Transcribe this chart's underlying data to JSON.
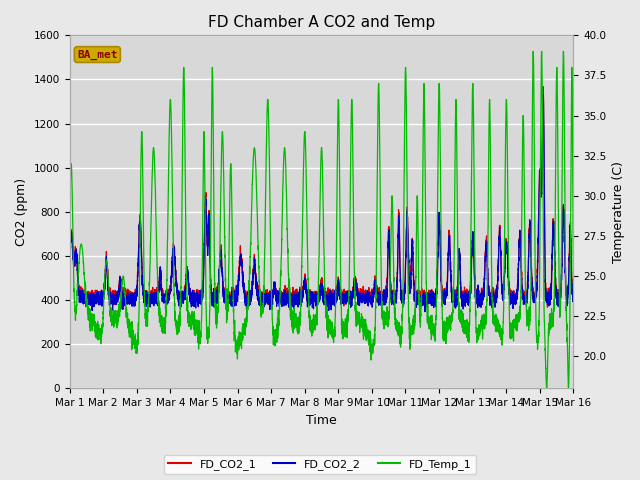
{
  "title": "FD Chamber A CO2 and Temp",
  "xlabel": "Time",
  "ylabel_left": "CO2 (ppm)",
  "ylabel_right": "Temperature (C)",
  "ylim_left": [
    0,
    1600
  ],
  "ylim_right": [
    18,
    40
  ],
  "xlim": [
    0,
    15
  ],
  "xtick_labels": [
    "Mar 1",
    "Mar 2",
    "Mar 3",
    "Mar 4",
    "Mar 5",
    "Mar 6",
    "Mar 7",
    "Mar 8",
    "Mar 9",
    "Mar 10",
    "Mar 11",
    "Mar 12",
    "Mar 13",
    "Mar 14",
    "Mar 15",
    "Mar 16"
  ],
  "xtick_positions": [
    0,
    1,
    2,
    3,
    4,
    5,
    6,
    7,
    8,
    9,
    10,
    11,
    12,
    13,
    14,
    15
  ],
  "line_colors": {
    "co2_1": "#dd0000",
    "co2_2": "#0000cc",
    "temp": "#00bb00"
  },
  "legend_labels": [
    "FD_CO2_1",
    "FD_CO2_2",
    "FD_Temp_1"
  ],
  "badge_text": "BA_met",
  "badge_facecolor": "#ccaa00",
  "badge_edgecolor": "#aa8800",
  "badge_text_color": "#880000",
  "plot_bg_color": "#d8d8d8",
  "fig_bg": "#e8e8e8",
  "grid_color": "white",
  "title_fontsize": 11,
  "axis_label_fontsize": 9,
  "tick_fontsize": 7.5,
  "legend_fontsize": 8,
  "linewidth": 0.9
}
